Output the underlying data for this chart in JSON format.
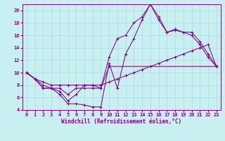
{
  "xlabel": "Windchill (Refroidissement éolien,°C)",
  "bg_color": "#c8f0f0",
  "grid_color": "#b0dede",
  "line_color": "#880088",
  "xlim": [
    -0.5,
    23.5
  ],
  "ylim": [
    4,
    21
  ],
  "xticks": [
    0,
    1,
    2,
    3,
    4,
    5,
    6,
    7,
    8,
    9,
    10,
    11,
    12,
    13,
    14,
    15,
    16,
    17,
    18,
    19,
    20,
    21,
    22,
    23
  ],
  "yticks": [
    4,
    6,
    8,
    10,
    12,
    14,
    16,
    18,
    20
  ],
  "line1_x": [
    0,
    1,
    2,
    3,
    4,
    5,
    6,
    7,
    8,
    9,
    10,
    23
  ],
  "line1_y": [
    10,
    9,
    7.5,
    7.5,
    7.5,
    6.5,
    7.5,
    7.5,
    7.5,
    7.5,
    11,
    11
  ],
  "line2_x": [
    0,
    1,
    2,
    3,
    4,
    5,
    6,
    7,
    8,
    9,
    10,
    11,
    12,
    13,
    14,
    15,
    16,
    17,
    18,
    19,
    20,
    21,
    22,
    23
  ],
  "line2_y": [
    10,
    9,
    8.5,
    8,
    8,
    8,
    8,
    8,
    8,
    8,
    8.5,
    9,
    9.5,
    10,
    10.5,
    11,
    11.5,
    12,
    12.5,
    13,
    13.5,
    14,
    14.5,
    11
  ],
  "line3_x": [
    0,
    1,
    2,
    3,
    4,
    5,
    6,
    7,
    8,
    9,
    10,
    11,
    12,
    13,
    14,
    15,
    16,
    17,
    18,
    19,
    20,
    21,
    22,
    23
  ],
  "line3_y": [
    10,
    9,
    7.5,
    7.5,
    6.5,
    5.0,
    5.0,
    4.8,
    4.5,
    4.5,
    11.5,
    7.5,
    13,
    15.5,
    18.5,
    21,
    18.5,
    16.5,
    16.8,
    16.5,
    16.5,
    15,
    13,
    11
  ],
  "line4_x": [
    0,
    1,
    2,
    3,
    4,
    5,
    6,
    7,
    8,
    9,
    10,
    11,
    12,
    13,
    14,
    15,
    16,
    17,
    18,
    19,
    20,
    21,
    22,
    23
  ],
  "line4_y": [
    10,
    9,
    8,
    7.5,
    7.0,
    5.5,
    6.5,
    8,
    8,
    7.5,
    12.5,
    15.5,
    16,
    18,
    19,
    21,
    19,
    16.5,
    17,
    16.5,
    16,
    14.5,
    12.5,
    11
  ]
}
